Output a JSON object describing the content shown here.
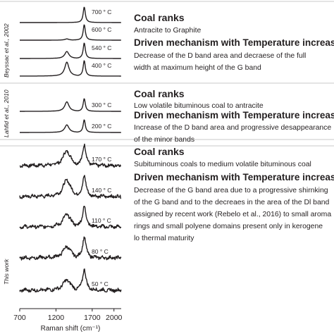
{
  "chart_data": {
    "type": "line",
    "xlabel": "Raman shift (cm⁻¹)",
    "x_ticks": [
      "700",
      "1200",
      "1700",
      "2000"
    ],
    "x_tick_values": [
      700,
      1200,
      1700,
      2000
    ],
    "xlim": [
      700,
      2100
    ],
    "grid": false,
    "panels": [
      {
        "id": "p1",
        "source": "Beyssac et al., 2002",
        "series": [
          {
            "name": "700 ° C",
            "d_ratio": 0.0,
            "g_height": 1.0,
            "noise": 0
          },
          {
            "name": "600 ° C",
            "d_ratio": 0.08,
            "g_height": 1.0,
            "noise": 0
          },
          {
            "name": "540 ° C",
            "d_ratio": 0.45,
            "g_height": 1.0,
            "noise": 0
          },
          {
            "name": "400 ° C",
            "d_ratio": 0.9,
            "g_height": 1.0,
            "noise": 0
          }
        ],
        "rank_title": "Coal ranks",
        "rank_text": [
          "Antracite to Graphite"
        ],
        "mech_title": "Driven mechanism with Temperature increase",
        "mech_text": [
          "Decrease of the D band area and decraese of the full",
          "width at maximum height of the G band"
        ]
      },
      {
        "id": "p2",
        "source": "Lahfid et al., 2010",
        "series": [
          {
            "name": "300 ° C",
            "d_ratio": 0.75,
            "g_height": 1.0,
            "noise": 0
          },
          {
            "name": "200 ° C",
            "d_ratio": 0.6,
            "g_height": 1.0,
            "noise": 0
          }
        ],
        "rank_title": "Coal ranks",
        "rank_text": [
          "Low volatile bituminous coal to antracite"
        ],
        "mech_title": "Driven mechanism with Temperature increase",
        "mech_text": [
          "Increase of the D band area and progressive desappearance",
          "of the minor bands"
        ]
      },
      {
        "id": "p3",
        "source": "This work",
        "series": [
          {
            "name": "170 ° C",
            "d_ratio": 0.7,
            "g_height": 1.0,
            "noise": 1
          },
          {
            "name": "140 ° C",
            "d_ratio": 0.8,
            "g_height": 1.0,
            "noise": 1
          },
          {
            "name": "110 ° C",
            "d_ratio": 0.6,
            "g_height": 1.0,
            "noise": 1
          },
          {
            "name": "80 ° C",
            "d_ratio": 0.55,
            "g_height": 1.0,
            "noise": 1
          },
          {
            "name": "50 ° C",
            "d_ratio": 0.5,
            "g_height": 1.0,
            "noise": 1
          }
        ],
        "rank_title": "Coal ranks",
        "rank_text": [
          "Subituminous coals to medium volatile bituminous coal"
        ],
        "mech_title": "Driven mechanism with Temperature increase",
        "mech_text": [
          "Decrease of the G band area due to a progressive shirnking",
          "of the G band and to the decreaes in the area of the Dl band",
          "assigned by recent work (Rebelo et al., 2016) to small aroma",
          "rings and small polyene domains present only in kerogene",
          "lo thermal maturity"
        ]
      }
    ]
  }
}
